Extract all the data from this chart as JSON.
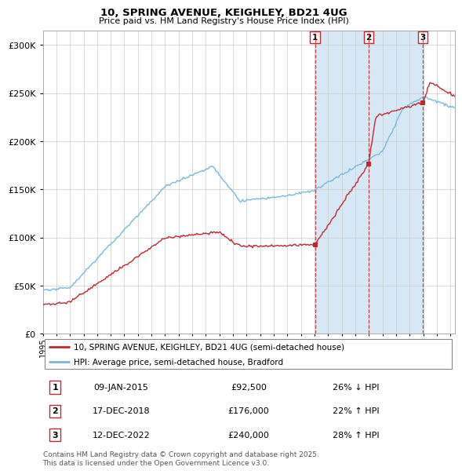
{
  "title_line1": "10, SPRING AVENUE, KEIGHLEY, BD21 4UG",
  "title_line2": "Price paid vs. HM Land Registry's House Price Index (HPI)",
  "ytick_values": [
    0,
    50000,
    100000,
    150000,
    200000,
    250000,
    300000
  ],
  "ylim": [
    0,
    315000
  ],
  "xlim_start": 1995.0,
  "xlim_end": 2025.3,
  "hpi_color": "#7ab8d9",
  "price_color": "#c0282d",
  "annotation_line_color": "#c0282d",
  "shaded_color": "#d6e8f5",
  "legend_label_red": "10, SPRING AVENUE, KEIGHLEY, BD21 4UG (semi-detached house)",
  "legend_label_blue": "HPI: Average price, semi-detached house, Bradford",
  "transactions": [
    {
      "num": 1,
      "date": "09-JAN-2015",
      "price": 92500,
      "year": 2015.03,
      "pct": "26%",
      "dir": "↓"
    },
    {
      "num": 2,
      "date": "17-DEC-2018",
      "price": 176000,
      "year": 2018.97,
      "pct": "22%",
      "dir": "↑"
    },
    {
      "num": 3,
      "date": "12-DEC-2022",
      "price": 240000,
      "year": 2022.97,
      "pct": "28%",
      "dir": "↑"
    }
  ],
  "footer": "Contains HM Land Registry data © Crown copyright and database right 2025.\nThis data is licensed under the Open Government Licence v3.0."
}
